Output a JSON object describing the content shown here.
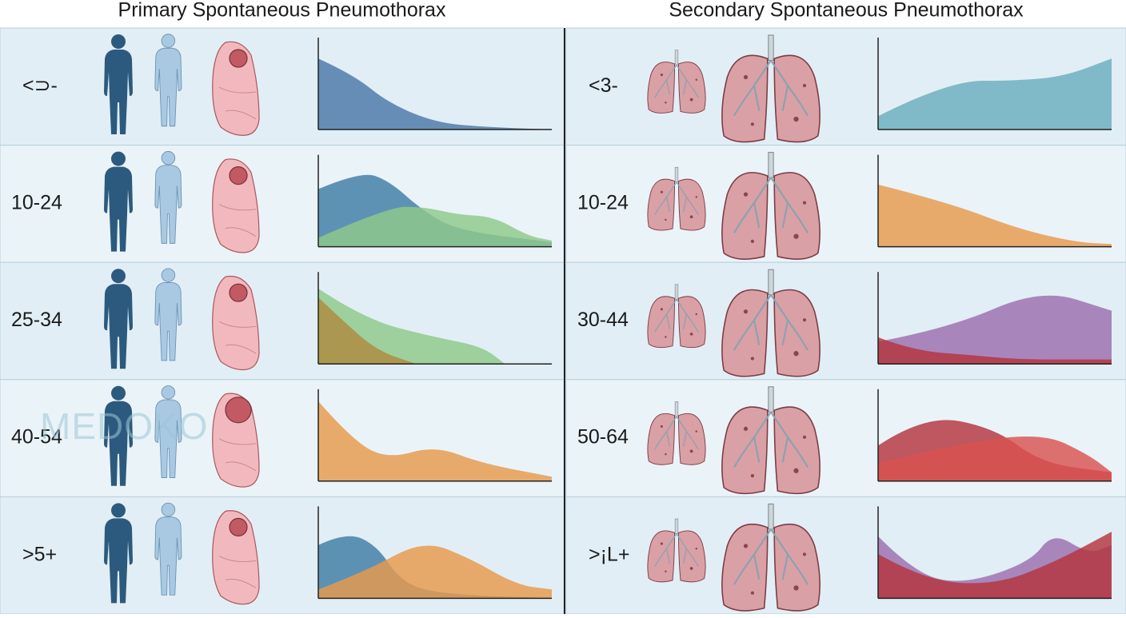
{
  "panels": [
    {
      "title": "Primary Spontaneous Pneumothorax",
      "rows": [
        "<⊃-",
        "10-24",
        "25-34",
        "40-54",
        ">5+"
      ]
    },
    {
      "title": "Secondary Spontaneous Pneumothorax",
      "rows": [
        "<3-",
        "10-24",
        "30-44",
        "50-64",
        ">¡L+"
      ]
    }
  ],
  "watermark": "MEDOKO"
}
